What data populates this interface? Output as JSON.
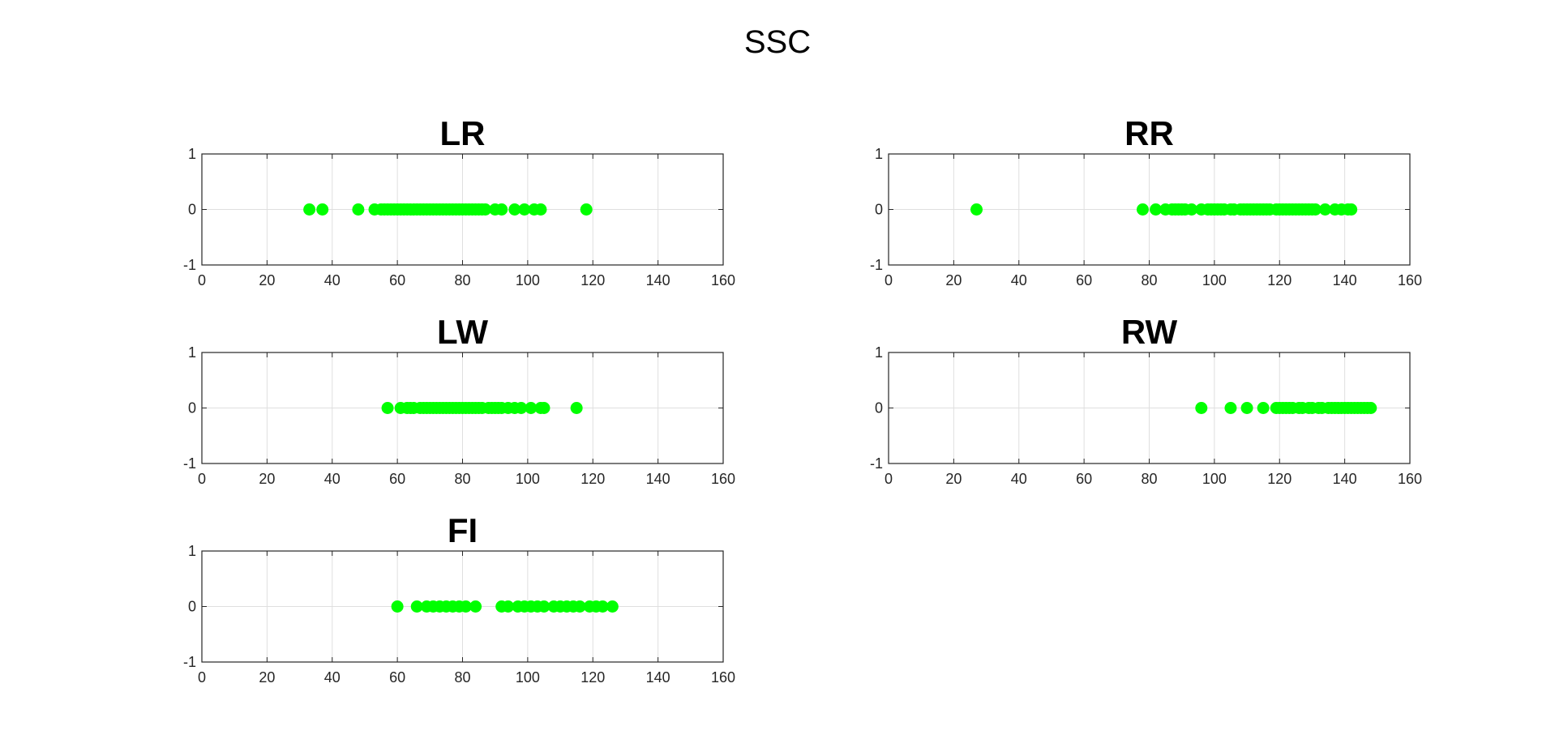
{
  "figure": {
    "title": "SSC"
  },
  "colors": {
    "marker": "#00ff00",
    "axis": "#262626",
    "grid": "#dfdfdf",
    "background": "#ffffff"
  },
  "chart_data": [
    {
      "type": "scatter",
      "title": "LR",
      "xlim": [
        0,
        160
      ],
      "ylim": [
        -1,
        1
      ],
      "xticks": [
        "0",
        "20",
        "40",
        "60",
        "80",
        "100",
        "120",
        "140",
        "160"
      ],
      "yticks": [
        "1",
        "0",
        "-1"
      ],
      "grid": true,
      "x": [
        33,
        37,
        48,
        53,
        55,
        56,
        57,
        58,
        59,
        60,
        61,
        62,
        63,
        64,
        65,
        66,
        67,
        68,
        69,
        70,
        71,
        72,
        73,
        74,
        75,
        76,
        77,
        78,
        79,
        80,
        81,
        82,
        83,
        84,
        85,
        86,
        87,
        90,
        92,
        96,
        99,
        102,
        104,
        118
      ],
      "y": [
        0,
        0,
        0,
        0,
        0,
        0,
        0,
        0,
        0,
        0,
        0,
        0,
        0,
        0,
        0,
        0,
        0,
        0,
        0,
        0,
        0,
        0,
        0,
        0,
        0,
        0,
        0,
        0,
        0,
        0,
        0,
        0,
        0,
        0,
        0,
        0,
        0,
        0,
        0,
        0,
        0,
        0,
        0,
        0
      ]
    },
    {
      "type": "scatter",
      "title": "RR",
      "xlim": [
        0,
        160
      ],
      "ylim": [
        -1,
        1
      ],
      "xticks": [
        "0",
        "20",
        "40",
        "60",
        "80",
        "100",
        "120",
        "140",
        "160"
      ],
      "yticks": [
        "1",
        "0",
        "-1"
      ],
      "grid": true,
      "x": [
        27,
        78,
        82,
        85,
        87,
        88,
        89,
        90,
        91,
        93,
        96,
        98,
        99,
        100,
        101,
        102,
        103,
        105,
        106,
        108,
        109,
        110,
        111,
        112,
        113,
        114,
        115,
        116,
        117,
        119,
        120,
        121,
        122,
        123,
        124,
        125,
        126,
        127,
        128,
        129,
        130,
        131,
        134,
        137,
        139,
        141,
        142
      ],
      "y": [
        0,
        0,
        0,
        0,
        0,
        0,
        0,
        0,
        0,
        0,
        0,
        0,
        0,
        0,
        0,
        0,
        0,
        0,
        0,
        0,
        0,
        0,
        0,
        0,
        0,
        0,
        0,
        0,
        0,
        0,
        0,
        0,
        0,
        0,
        0,
        0,
        0,
        0,
        0,
        0,
        0,
        0,
        0,
        0,
        0,
        0,
        0
      ]
    },
    {
      "type": "scatter",
      "title": "LW",
      "xlim": [
        0,
        160
      ],
      "ylim": [
        -1,
        1
      ],
      "xticks": [
        "0",
        "20",
        "40",
        "60",
        "80",
        "100",
        "120",
        "140",
        "160"
      ],
      "yticks": [
        "1",
        "0",
        "-1"
      ],
      "grid": true,
      "x": [
        57,
        61,
        63,
        64,
        65,
        67,
        68,
        69,
        70,
        71,
        72,
        73,
        74,
        75,
        76,
        77,
        78,
        79,
        80,
        81,
        82,
        83,
        84,
        85,
        86,
        88,
        89,
        90,
        91,
        92,
        94,
        96,
        98,
        101,
        104,
        105,
        115
      ],
      "y": [
        0,
        0,
        0,
        0,
        0,
        0,
        0,
        0,
        0,
        0,
        0,
        0,
        0,
        0,
        0,
        0,
        0,
        0,
        0,
        0,
        0,
        0,
        0,
        0,
        0,
        0,
        0,
        0,
        0,
        0,
        0,
        0,
        0,
        0,
        0,
        0,
        0
      ]
    },
    {
      "type": "scatter",
      "title": "RW",
      "xlim": [
        0,
        160
      ],
      "ylim": [
        -1,
        1
      ],
      "xticks": [
        "0",
        "20",
        "40",
        "60",
        "80",
        "100",
        "120",
        "140",
        "160"
      ],
      "yticks": [
        "1",
        "0",
        "-1"
      ],
      "grid": true,
      "x": [
        96,
        105,
        110,
        115,
        119,
        120,
        121,
        122,
        123,
        124,
        126,
        127,
        129,
        130,
        132,
        133,
        135,
        136,
        137,
        138,
        139,
        140,
        141,
        142,
        143,
        144,
        145,
        146,
        147,
        148
      ],
      "y": [
        0,
        0,
        0,
        0,
        0,
        0,
        0,
        0,
        0,
        0,
        0,
        0,
        0,
        0,
        0,
        0,
        0,
        0,
        0,
        0,
        0,
        0,
        0,
        0,
        0,
        0,
        0,
        0,
        0,
        0
      ]
    },
    {
      "type": "scatter",
      "title": "FI",
      "xlim": [
        0,
        160
      ],
      "ylim": [
        -1,
        1
      ],
      "xticks": [
        "0",
        "20",
        "40",
        "60",
        "80",
        "100",
        "120",
        "140",
        "160"
      ],
      "yticks": [
        "1",
        "0",
        "-1"
      ],
      "grid": true,
      "x": [
        60,
        66,
        69,
        71,
        73,
        75,
        77,
        79,
        81,
        84,
        92,
        94,
        97,
        99,
        101,
        103,
        105,
        108,
        110,
        112,
        114,
        116,
        119,
        121,
        123,
        126
      ],
      "y": [
        0,
        0,
        0,
        0,
        0,
        0,
        0,
        0,
        0,
        0,
        0,
        0,
        0,
        0,
        0,
        0,
        0,
        0,
        0,
        0,
        0,
        0,
        0,
        0,
        0,
        0
      ]
    }
  ]
}
